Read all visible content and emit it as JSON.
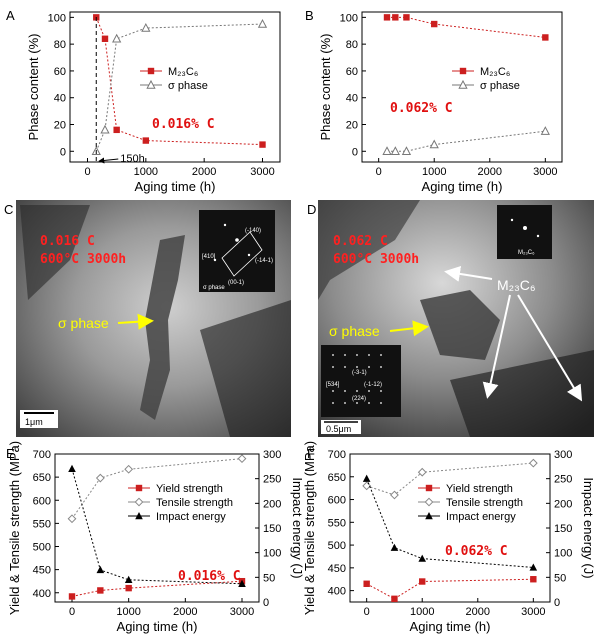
{
  "panels": {
    "A": {
      "letter": "A",
      "annotation": "0.016% C",
      "annotation2": "150h"
    },
    "B": {
      "letter": "B",
      "annotation": "0.062% C"
    },
    "C": {
      "letter": "C",
      "label_line1": "0.016 C",
      "label_line2": "600°C  3000h",
      "phase_label": "σ phase",
      "scale_bar": "1μm",
      "diffraction": {
        "d1": "(-140)",
        "d2": "[410]",
        "d3": "(-14-1)",
        "d4": "(00-1)",
        "caption": "σ phase"
      }
    },
    "D": {
      "letter": "D",
      "label_line1": "0.062 C",
      "label_line2": "600°C  3000h",
      "carbide_label": "M₂₃C₆",
      "phase_label": "σ phase",
      "scale_bar": "0.5μm",
      "diffraction_caption": "M₂₃C₆",
      "diffraction": {
        "d1": "(-3-1)",
        "d2": "[534]",
        "d3": "(-1-12)",
        "d4": "(224)"
      }
    },
    "E": {
      "letter": "E",
      "annotation": "0.016% C"
    },
    "F": {
      "letter": "F",
      "annotation": "0.062% C"
    }
  },
  "chart_data": [
    {
      "id": "A",
      "type": "line",
      "xlabel": "Aging time (h)",
      "ylabel": "Phase content (%)",
      "xlim": [
        -300,
        3300
      ],
      "ylim": [
        -8,
        104
      ],
      "xticks": [
        0,
        1000,
        2000,
        3000
      ],
      "yticks": [
        0,
        20,
        40,
        60,
        80,
        100
      ],
      "legend_position": "center-right",
      "series": [
        {
          "name": "M₂₃C₆",
          "color": "#cc1f1f",
          "marker": "square",
          "x": [
            150,
            300,
            500,
            1000,
            3000
          ],
          "y": [
            100,
            84,
            16,
            8,
            5
          ]
        },
        {
          "name": "σ phase",
          "color": "#777777",
          "marker": "triangle-open",
          "x": [
            150,
            300,
            500,
            1000,
            3000
          ],
          "y": [
            0,
            16,
            84,
            92,
            95
          ]
        }
      ]
    },
    {
      "id": "B",
      "type": "line",
      "xlabel": "Aging time (h)",
      "ylabel": "Phase content (%)",
      "xlim": [
        -300,
        3300
      ],
      "ylim": [
        -8,
        104
      ],
      "xticks": [
        0,
        1000,
        2000,
        3000
      ],
      "yticks": [
        0,
        20,
        40,
        60,
        80,
        100
      ],
      "legend_position": "center-right",
      "series": [
        {
          "name": "M₂₃C₆",
          "color": "#cc1f1f",
          "marker": "square",
          "x": [
            150,
            300,
            500,
            1000,
            3000
          ],
          "y": [
            100,
            100,
            100,
            95,
            85
          ]
        },
        {
          "name": "σ phase",
          "color": "#777777",
          "marker": "triangle-open",
          "x": [
            150,
            300,
            500,
            1000,
            3000
          ],
          "y": [
            0,
            0,
            0,
            5,
            15
          ]
        }
      ]
    },
    {
      "id": "E",
      "type": "line",
      "xlabel": "Aging time (h)",
      "ylabel": "Yield & Tensile strength (MPa)",
      "y2label": "Impact energy (J)",
      "xlim": [
        -300,
        3300
      ],
      "ylim": [
        380,
        700
      ],
      "y2lim": [
        0,
        300
      ],
      "xticks": [
        0,
        1000,
        2000,
        3000
      ],
      "yticks": [
        400,
        450,
        500,
        550,
        600,
        650,
        700
      ],
      "y2ticks": [
        0,
        50,
        100,
        150,
        200,
        250,
        300
      ],
      "legend_position": "top-center",
      "series": [
        {
          "name": "Yield strength",
          "axis": "left",
          "color": "#cc1f1f",
          "marker": "square",
          "x": [
            0,
            500,
            1000,
            3000
          ],
          "y": [
            392,
            405,
            410,
            425
          ]
        },
        {
          "name": "Tensile strength",
          "axis": "left",
          "color": "#888888",
          "marker": "diamond-open",
          "x": [
            0,
            500,
            1000,
            3000
          ],
          "y": [
            560,
            648,
            667,
            690
          ]
        },
        {
          "name": "Impact energy",
          "axis": "right",
          "color": "#000000",
          "marker": "triangle",
          "x": [
            0,
            500,
            1000,
            3000
          ],
          "y": [
            270,
            65,
            45,
            37
          ]
        }
      ]
    },
    {
      "id": "F",
      "type": "line",
      "xlabel": "Aging time (h)",
      "ylabel": "Yield & Tensile strength (MPa)",
      "y2label": "Impact energy (J)",
      "xlim": [
        -300,
        3300
      ],
      "ylim": [
        375,
        700
      ],
      "y2lim": [
        0,
        300
      ],
      "xticks": [
        0,
        1000,
        2000,
        3000
      ],
      "yticks": [
        400,
        450,
        500,
        550,
        600,
        650,
        700
      ],
      "y2ticks": [
        0,
        50,
        100,
        150,
        200,
        250,
        300
      ],
      "legend_position": "top-center",
      "series": [
        {
          "name": "Yield strength",
          "axis": "left",
          "color": "#cc1f1f",
          "marker": "square",
          "x": [
            0,
            500,
            1000,
            3000
          ],
          "y": [
            415,
            382,
            420,
            425
          ]
        },
        {
          "name": "Tensile strength",
          "axis": "left",
          "color": "#888888",
          "marker": "diamond-open",
          "x": [
            0,
            500,
            1000,
            3000
          ],
          "y": [
            630,
            610,
            660,
            680
          ]
        },
        {
          "name": "Impact energy",
          "axis": "right",
          "color": "#000000",
          "marker": "triangle",
          "x": [
            0,
            500,
            1000,
            3000
          ],
          "y": [
            250,
            110,
            88,
            70
          ]
        }
      ]
    }
  ]
}
